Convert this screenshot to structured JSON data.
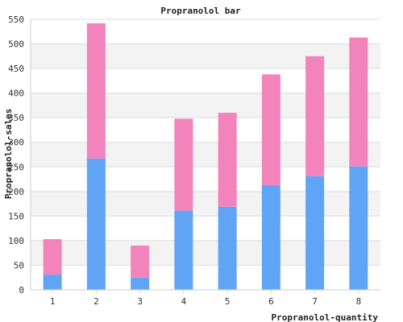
{
  "chart_data": {
    "type": "bar",
    "stacked": true,
    "title": "Propranolol bar",
    "xlabel": "Propranolol-quantity",
    "ylabel": "Propranolol-sales",
    "categories": [
      "1",
      "2",
      "3",
      "4",
      "5",
      "6",
      "7",
      "8"
    ],
    "series": [
      {
        "color": "#60a5f5",
        "values": [
          31,
          267,
          25,
          161,
          169,
          212,
          231,
          251
        ]
      },
      {
        "color": "#f384bb",
        "values": [
          72,
          275,
          65,
          187,
          191,
          226,
          244,
          262
        ]
      }
    ],
    "ylim": [
      0,
      550
    ],
    "yticks": [
      0,
      50,
      100,
      150,
      200,
      250,
      300,
      350,
      400,
      450,
      500,
      550
    ],
    "grid": true,
    "legend": "none",
    "colors": {
      "band": "#f3f3f3",
      "gridline": "#dddddd",
      "axis": "#cccccc"
    }
  }
}
